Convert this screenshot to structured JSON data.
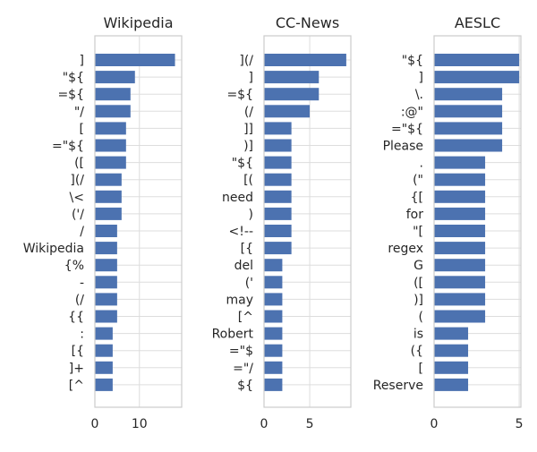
{
  "chart_data": [
    {
      "type": "bar",
      "orientation": "horizontal",
      "title": "Wikipedia",
      "categories": [
        "]",
        "\"${",
        "=${",
        "\"/",
        "[",
        "=\"${",
        "([",
        "](/",
        "\\<",
        "('/",
        "/",
        "Wikipedia",
        "{%",
        "-",
        "(/",
        "{{",
        ":",
        "[{",
        "]+",
        "[^"
      ],
      "values": [
        18,
        9,
        8,
        8,
        7,
        7,
        7,
        6,
        6,
        6,
        5,
        5,
        5,
        5,
        5,
        5,
        4,
        4,
        4,
        4
      ],
      "xticks": [
        0,
        10
      ],
      "xlim": [
        0,
        19.5
      ],
      "grid": true
    },
    {
      "type": "bar",
      "orientation": "horizontal",
      "title": "CC-News",
      "categories": [
        "](/",
        "]",
        "=${",
        "(/",
        "]]",
        ")]",
        "\"${",
        "[(",
        "need",
        ")",
        "<!--",
        "[{",
        "del",
        "('",
        "may",
        "[^",
        "Robert",
        "=\"$",
        "=\"/",
        "${"
      ],
      "values": [
        9,
        6,
        6,
        5,
        3,
        3,
        3,
        3,
        3,
        3,
        3,
        3,
        2,
        2,
        2,
        2,
        2,
        2,
        2,
        2
      ],
      "xticks": [
        0,
        5
      ],
      "xlim": [
        0,
        9.5
      ],
      "grid": true
    },
    {
      "type": "bar",
      "orientation": "horizontal",
      "title": "AESLC",
      "categories": [
        "\"${",
        "]",
        "\\.",
        ":@\"",
        "=\"${",
        "Please",
        ".",
        "(\"",
        "{[",
        "for",
        "\"[",
        "regex",
        "G",
        "([",
        ")]",
        "(",
        "is",
        "({",
        "[",
        "Reserve"
      ],
      "values": [
        5,
        5,
        4,
        4,
        4,
        4,
        3,
        3,
        3,
        3,
        3,
        3,
        3,
        3,
        3,
        3,
        2,
        2,
        2,
        2
      ],
      "xticks": [
        0,
        5
      ],
      "xlim": [
        0,
        5.1
      ],
      "grid": true
    }
  ],
  "colors": {
    "bar": "#4c72b0",
    "frame": "#cccccc",
    "grid": "#dddddd",
    "text": "#262626"
  }
}
